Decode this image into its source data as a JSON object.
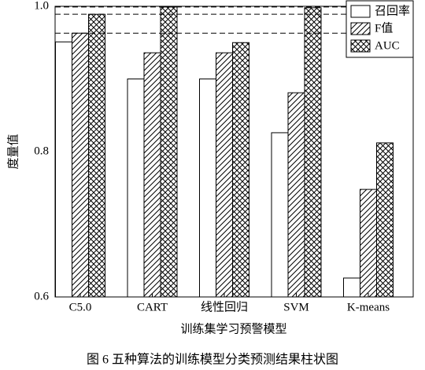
{
  "chart_data": {
    "type": "bar",
    "caption": "图 6   五种算法的训练模型分类预测结果柱状图",
    "x_label": "训练集学习预警模型",
    "y_label": "度量值",
    "categories": [
      "C5.0",
      "CART",
      "线性回归",
      "SVM",
      "K-means"
    ],
    "series": [
      {
        "name": "召回率",
        "color": "#ffffff",
        "pattern": "none",
        "values": [
          0.951,
          0.9,
          0.9,
          0.826,
          0.626
        ]
      },
      {
        "name": "F值",
        "color": "#ffffff",
        "pattern": "diagonal",
        "values": [
          0.963,
          0.936,
          0.936,
          0.881,
          0.748
        ]
      },
      {
        "name": "AUC",
        "color": "#ffffff",
        "pattern": "cross",
        "values": [
          0.989,
          0.999,
          0.95,
          0.998,
          0.812
        ]
      }
    ],
    "reference_lines": [
      0.999,
      0.989,
      0.963
    ],
    "ylim": [
      0.6,
      1.0
    ],
    "yticks": [
      0.6,
      0.8,
      {
        "value": 1,
        "label": "1.0"
      }
    ],
    "legend": "top-right"
  }
}
